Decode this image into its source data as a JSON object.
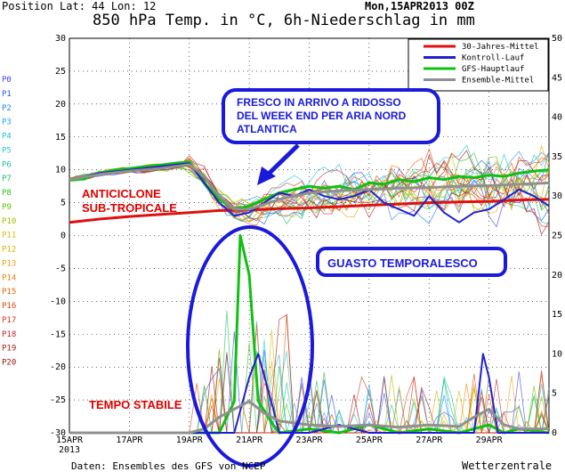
{
  "header": {
    "position": "Position   Lat: 44 Lon: 12",
    "date": "Mon,15APR2013 00Z",
    "title": "850 hPa Temp. in °C, 6h-Niederschlag in mm"
  },
  "footer": {
    "source": "Daten: Ensembles des GFS von NCEP",
    "brand": "Wetterzentrale"
  },
  "legend": [
    {
      "label": "30-Jahres-Mittel",
      "color": "#e01010"
    },
    {
      "label": "Kontroll-Lauf",
      "color": "#2020d0"
    },
    {
      "label": "GFS-Hauptlauf",
      "color": "#10c010"
    },
    {
      "label": "Ensemble-Mittel",
      "color": "#909090"
    }
  ],
  "perturbations": [
    {
      "label": "P0",
      "color": "#4040ff"
    },
    {
      "label": "P1",
      "color": "#3050ff"
    },
    {
      "label": "P2",
      "color": "#2080ff"
    },
    {
      "label": "P3",
      "color": "#20a0ff"
    },
    {
      "label": "P4",
      "color": "#20c0e0"
    },
    {
      "label": "P5",
      "color": "#20d0d0"
    },
    {
      "label": "P6",
      "color": "#20c0a0"
    },
    {
      "label": "P7",
      "color": "#20c060"
    },
    {
      "label": "P8",
      "color": "#30c020"
    },
    {
      "label": "P9",
      "color": "#60c000"
    },
    {
      "label": "P10",
      "color": "#a0c000"
    },
    {
      "label": "P11",
      "color": "#d0c000"
    },
    {
      "label": "P12",
      "color": "#e0b000"
    },
    {
      "label": "P13",
      "color": "#f0a000"
    },
    {
      "label": "P14",
      "color": "#f08000"
    },
    {
      "label": "P15",
      "color": "#f06000"
    },
    {
      "label": "P16",
      "color": "#e04010"
    },
    {
      "label": "P17",
      "color": "#d03020"
    },
    {
      "label": "P18",
      "color": "#c02020"
    },
    {
      "label": "P19",
      "color": "#b01818"
    },
    {
      "label": "P20",
      "color": "#a01010"
    }
  ],
  "annotations": {
    "fresco": [
      "FRESCO IN ARRIVO A RIDOSSO",
      "DEL WEEK END PER ARIA NORD",
      "ATLANTICA"
    ],
    "anticiclone": [
      "ANTICICLONE",
      "SUB-TROPICALE"
    ],
    "guasto": "GUASTO TEMPORALESCO",
    "stabile": "TEMPO STABILE"
  },
  "colors": {
    "annotation_blue": "#1a1adc",
    "annotation_red": "#e00000",
    "grid": "#000000"
  },
  "chart_data": {
    "type": "line",
    "x_ticks": [
      "15APR",
      "17APR",
      "19APR",
      "21APR",
      "23APR",
      "25APR",
      "27APR",
      "29APR"
    ],
    "x_extra_label": "2013",
    "xlim_days": [
      0,
      16
    ],
    "y_left": {
      "ticks": [
        30,
        25,
        20,
        15,
        10,
        5,
        0,
        -5,
        -10,
        -15,
        -20,
        -25,
        -30
      ],
      "lim": [
        -30,
        30
      ],
      "unit": "°C"
    },
    "y_right": {
      "ticks": [
        50,
        45,
        40,
        35,
        30,
        25,
        20,
        15,
        10,
        5,
        0
      ],
      "lim": [
        0,
        50
      ],
      "unit": "mm"
    },
    "grid": true,
    "legend_position": "top-right",
    "temperature_series": [
      {
        "name": "30-Jahres-Mittel",
        "color": "#e01010",
        "x": [
          0,
          1,
          2,
          3,
          4,
          5,
          6,
          7,
          8,
          9,
          10,
          11,
          12,
          13,
          14,
          15,
          16
        ],
        "y": [
          2,
          2.5,
          2.9,
          3.2,
          3.5,
          3.8,
          3.9,
          4.1,
          4.2,
          4.4,
          4.6,
          4.8,
          5,
          5.1,
          5.2,
          5.4,
          5.5
        ]
      },
      {
        "name": "GFS-Hauptlauf",
        "color": "#10c010",
        "x": [
          0,
          0.5,
          1,
          1.5,
          2,
          2.5,
          3,
          3.5,
          4,
          4.5,
          5,
          5.5,
          6,
          6.5,
          7,
          7.5,
          8,
          8.5,
          9,
          9.5,
          10,
          10.5,
          11,
          11.5,
          12,
          12.5,
          13,
          13.5,
          14,
          14.5,
          15,
          15.5,
          16
        ],
        "y": [
          8.5,
          8.6,
          9.5,
          10,
          10.2,
          10.5,
          10.7,
          11,
          11.2,
          8,
          5.5,
          4,
          4.5,
          5.5,
          6.5,
          7,
          7.5,
          7.2,
          7.5,
          7,
          8,
          7.8,
          8.5,
          8.2,
          8.8,
          8.5,
          9,
          8.8,
          9.2,
          9,
          9.5,
          9.8,
          10
        ]
      },
      {
        "name": "Kontroll-Lauf",
        "color": "#2020d0",
        "x": [
          0,
          1,
          2,
          3,
          4,
          4.5,
          5,
          5.5,
          6,
          6.5,
          7,
          7.5,
          8,
          8.5,
          9,
          9.5,
          10,
          10.5,
          11,
          11.5,
          12,
          12.5,
          13,
          13.5,
          14,
          14.5,
          15,
          15.5,
          16
        ],
        "y": [
          8.5,
          9.5,
          10,
          10.5,
          11,
          8,
          5,
          3,
          3.5,
          5,
          6.5,
          6,
          7,
          6,
          5.5,
          6,
          7,
          5,
          4,
          3,
          6,
          3.5,
          2,
          3.5,
          4,
          5.5,
          7,
          6,
          4.5
        ]
      },
      {
        "name": "Ensemble-Mittel",
        "color": "#909090",
        "x": [
          0,
          1,
          2,
          3,
          4,
          4.5,
          5,
          5.5,
          6,
          7,
          8,
          9,
          10,
          11,
          12,
          13,
          14,
          15,
          16
        ],
        "y": [
          8.5,
          9.3,
          9.8,
          10.2,
          10.8,
          9,
          6,
          4,
          4,
          5.5,
          6.5,
          6.8,
          7,
          7.2,
          7.3,
          7.5,
          7.6,
          7.8,
          8
        ]
      }
    ],
    "precipitation_series": [
      {
        "name": "GFS-Hauptlauf",
        "color": "#10c010",
        "x": [
          0,
          4,
          5,
          5.5,
          5.7,
          6,
          6.3,
          6.8,
          7,
          8,
          9,
          10,
          11,
          12,
          13,
          14,
          14.5,
          15,
          16
        ],
        "y": [
          0,
          0,
          0,
          4,
          25,
          20,
          4,
          1,
          0,
          0.5,
          0,
          1,
          0,
          0.5,
          0,
          1,
          0,
          0.5,
          0
        ]
      },
      {
        "name": "Kontroll-Lauf",
        "color": "#2020d0",
        "x": [
          0,
          4,
          5.5,
          6,
          6.3,
          6.8,
          7,
          8,
          9,
          10,
          11,
          12,
          13,
          13.5,
          13.8,
          14,
          14.3,
          16
        ],
        "y": [
          0,
          0,
          0,
          7,
          10,
          3,
          0,
          0,
          1,
          0,
          0,
          0,
          0,
          0,
          10,
          7,
          0,
          0
        ]
      },
      {
        "name": "Ensemble-Mittel",
        "color": "#909090",
        "x": [
          0,
          4,
          4.5,
          5,
          5.5,
          6,
          6.5,
          7,
          8,
          9,
          10,
          11,
          12,
          13,
          13.5,
          14,
          14.5,
          15,
          16
        ],
        "y": [
          0,
          0,
          0.5,
          2,
          3,
          4,
          2.5,
          1.5,
          1,
          0.8,
          1,
          0.7,
          1,
          0.8,
          2,
          3,
          1,
          0.5,
          0.5
        ]
      }
    ]
  }
}
